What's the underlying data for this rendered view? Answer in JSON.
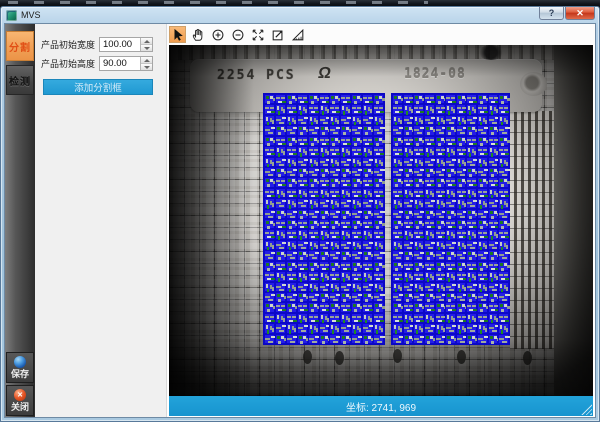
{
  "window": {
    "title": "MVS",
    "controls": {
      "help": "?",
      "close": "✕"
    }
  },
  "sidebar": {
    "tabs": [
      {
        "label": "分割",
        "active": true
      },
      {
        "label": "检测",
        "active": false
      }
    ],
    "save_label": "保存",
    "close_label": "关闭"
  },
  "panel": {
    "fields": [
      {
        "label": "产品初始宽度",
        "value": "100.00"
      },
      {
        "label": "产品初始高度",
        "value": "90.00"
      }
    ],
    "add_button_label": "添加分割框"
  },
  "toolbar": {
    "icons": [
      "pointer",
      "pan-hand",
      "zoom-in",
      "zoom-out",
      "fit-view",
      "export-view",
      "measure-ruler"
    ],
    "active_icon": "pointer"
  },
  "viewport": {
    "pcs_text": "2254 PCS",
    "lot_text": "1824-08",
    "logo_glyph": "Ω"
  },
  "statusbar": {
    "coords_text": "坐标: 2741, 969"
  },
  "colors": {
    "accent_blue": "#1b9cd8",
    "overlay_blue": "#1f18e2",
    "active_tab_orange": "#f0a057",
    "active_tab_text": "#e14f15"
  }
}
